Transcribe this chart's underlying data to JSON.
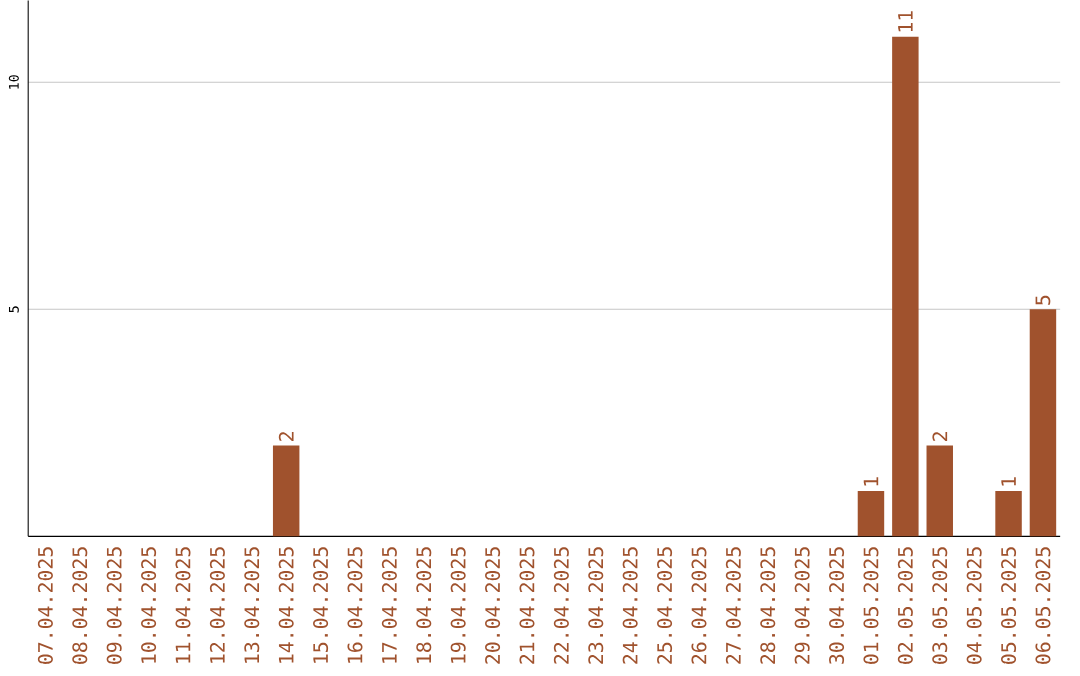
{
  "chart_data": {
    "type": "bar",
    "categories": [
      "07.04.2025",
      "08.04.2025",
      "09.04.2025",
      "10.04.2025",
      "11.04.2025",
      "12.04.2025",
      "13.04.2025",
      "14.04.2025",
      "15.04.2025",
      "16.04.2025",
      "17.04.2025",
      "18.04.2025",
      "19.04.2025",
      "20.04.2025",
      "21.04.2025",
      "22.04.2025",
      "23.04.2025",
      "24.04.2025",
      "25.04.2025",
      "26.04.2025",
      "27.04.2025",
      "28.04.2025",
      "29.04.2025",
      "30.04.2025",
      "01.05.2025",
      "02.05.2025",
      "03.05.2025",
      "04.05.2025",
      "05.05.2025",
      "06.05.2025"
    ],
    "values": [
      0,
      0,
      0,
      0,
      0,
      0,
      0,
      2,
      0,
      0,
      0,
      0,
      0,
      0,
      0,
      0,
      0,
      0,
      0,
      0,
      0,
      0,
      0,
      0,
      1,
      11,
      2,
      0,
      1,
      5
    ],
    "value_labels": [
      null,
      null,
      null,
      null,
      null,
      null,
      null,
      "2",
      null,
      null,
      null,
      null,
      null,
      null,
      null,
      null,
      null,
      null,
      null,
      null,
      null,
      null,
      null,
      null,
      "1",
      "11",
      "2",
      null,
      "1",
      "5"
    ],
    "color": "#a0522d",
    "ylim": [
      0,
      11.8
    ],
    "yticks": [
      5,
      10
    ],
    "grid": "y"
  }
}
